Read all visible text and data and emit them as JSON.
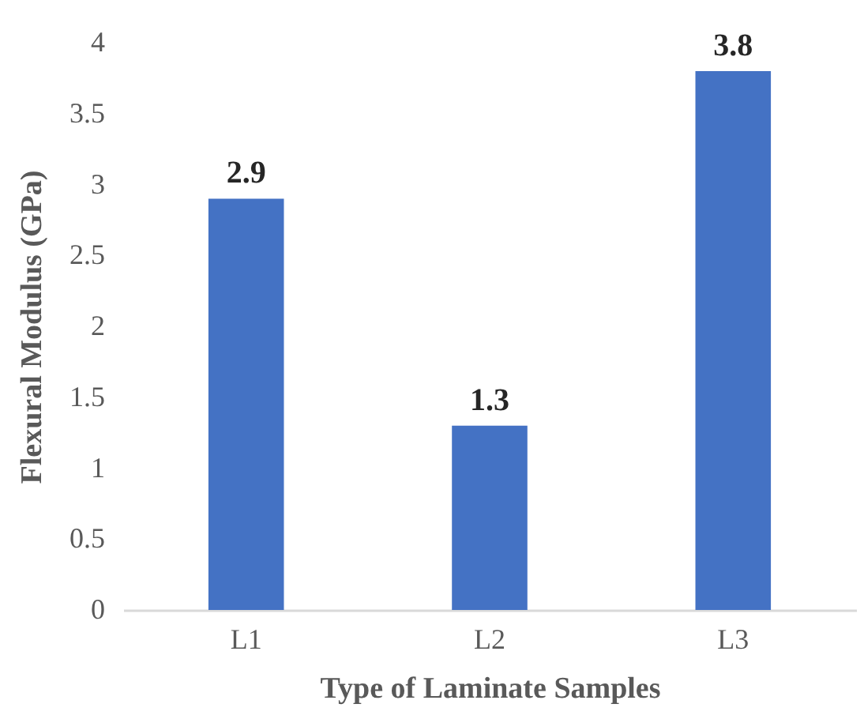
{
  "chart_data": {
    "type": "bar",
    "xlabel": "Type of Laminate Samples",
    "ylabel": "Flexural Modulus (GPa)",
    "categories": [
      "L1",
      "L2",
      "L3"
    ],
    "values": [
      2.9,
      1.3,
      3.8
    ],
    "color": "#4472c4",
    "ylim": [
      0,
      4
    ],
    "yticks": [
      0,
      0.5,
      1,
      1.5,
      2,
      2.5,
      3,
      3.5,
      4
    ],
    "grid": false,
    "data_labels": true
  }
}
